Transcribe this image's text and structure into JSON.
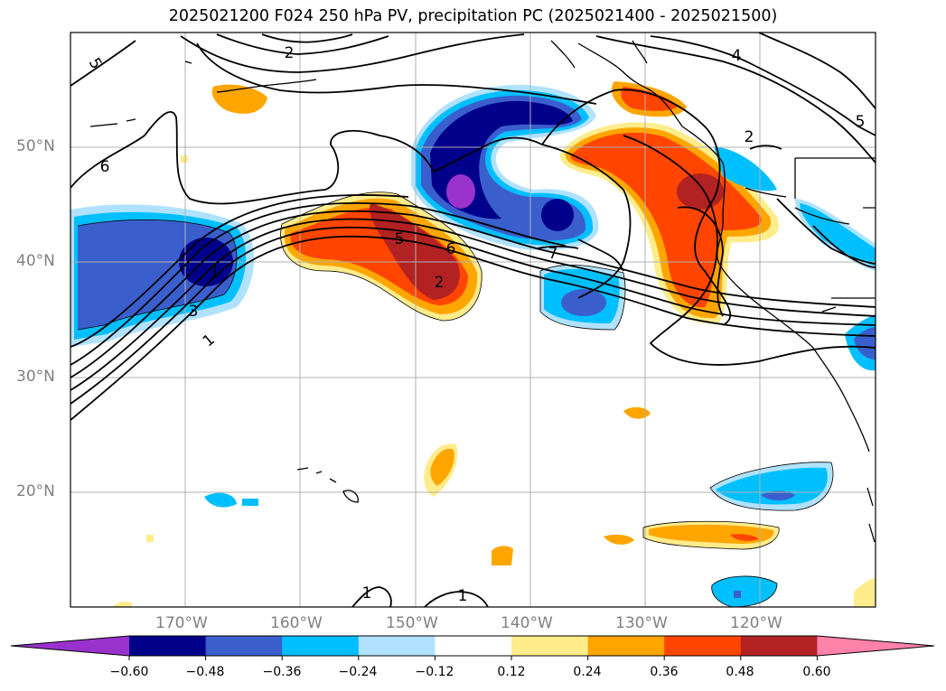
{
  "title": "2025021200 F024 250 hPa PV, precipitation PC (2025021400 - 2025021500)",
  "map": {
    "lat_labels": [
      "50°N",
      "40°N",
      "30°N",
      "20°N"
    ],
    "lon_labels": [
      "170°W",
      "160°W",
      "150°W",
      "140°W",
      "130°W",
      "120°W"
    ],
    "pv_contour_labels": [
      "5",
      "2",
      "6",
      "4",
      "2",
      "5",
      "1",
      "3",
      "5",
      "6",
      "2",
      "7",
      "1",
      "1",
      "1"
    ]
  },
  "colorbar": {
    "tick_labels": [
      "−0.60",
      "−0.48",
      "−0.36",
      "−0.24",
      "−0.12",
      "0.12",
      "0.24",
      "0.36",
      "0.48",
      "0.60"
    ],
    "colors": [
      "#9932cc",
      "#00008b",
      "#3a5fcd",
      "#00bfff",
      "#b0e2ff",
      "#ffffff",
      "#ffec8b",
      "#ffa500",
      "#ff4500",
      "#b22222",
      "#ff82ab"
    ]
  }
}
